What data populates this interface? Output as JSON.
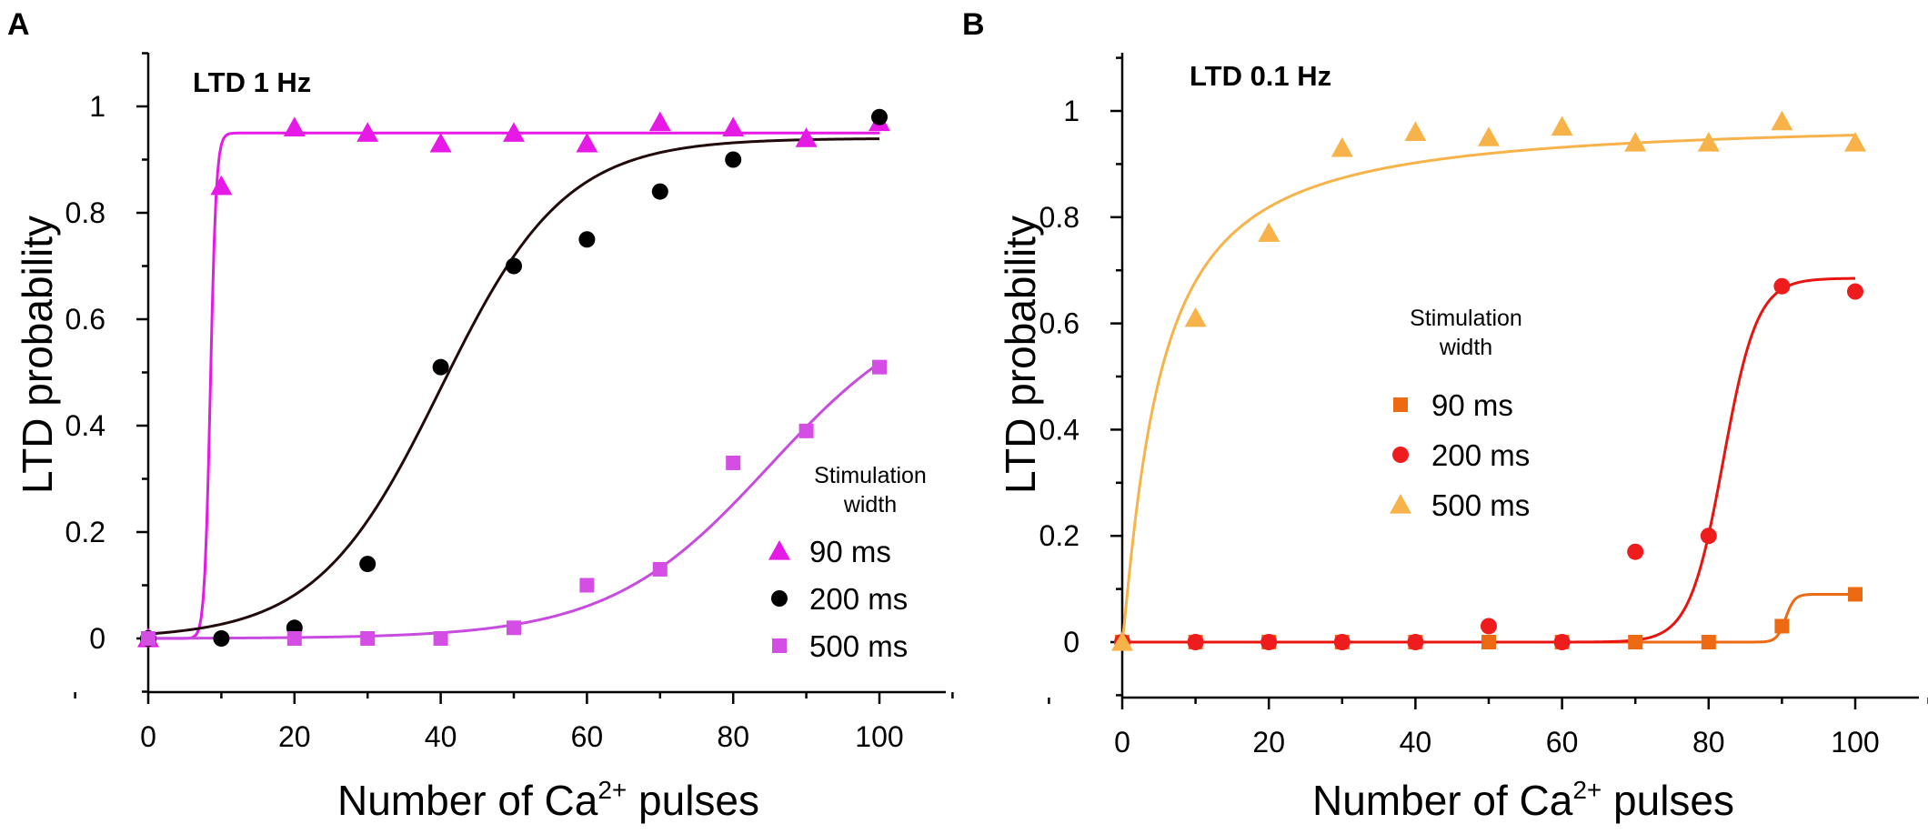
{
  "chart_data": [
    {
      "panel": "A",
      "type": "scatter",
      "title": "LTD 1 Hz",
      "xlabel": "Number of Ca",
      "xlabel_sup": "2+",
      "xlabel_suffix": " pulses",
      "ylabel": "LTD probability",
      "xlim": [
        -10,
        110
      ],
      "ylim": [
        -0.1,
        1.1
      ],
      "xticks": [
        0,
        20,
        40,
        60,
        80,
        100
      ],
      "xtick_labels": [
        "0",
        "20",
        "40",
        "60",
        "80",
        "100"
      ],
      "yticks": [
        0,
        0.2,
        0.4,
        0.6,
        0.8,
        1
      ],
      "ytick_labels": [
        "0",
        "0.2",
        "0.4",
        "0.6",
        "0.8",
        "1"
      ],
      "legend_title": [
        "Stimulation",
        "width"
      ],
      "legend_position": "bottom-right",
      "series": [
        {
          "name": "90 ms",
          "marker": "triangle",
          "color": "#e619e6",
          "x": [
            0,
            10,
            20,
            30,
            40,
            50,
            60,
            70,
            80,
            90,
            100
          ],
          "y": [
            0,
            0.85,
            0.96,
            0.95,
            0.93,
            0.95,
            0.93,
            0.97,
            0.96,
            0.94,
            0.97
          ],
          "fit": {
            "type": "sigmoid",
            "A": 0.95,
            "x0": 8.5,
            "k": 0.4
          }
        },
        {
          "name": "200 ms",
          "marker": "circle",
          "color": "#000000",
          "x": [
            0,
            10,
            20,
            30,
            40,
            50,
            60,
            70,
            80,
            100
          ],
          "y": [
            0,
            0,
            0.02,
            0.14,
            0.51,
            0.7,
            0.75,
            0.84,
            0.9,
            0.98
          ],
          "fit": {
            "type": "sigmoid",
            "A": 0.94,
            "x0": 40,
            "k": 8.5,
            "color": "#200a0a"
          }
        },
        {
          "name": "500 ms",
          "marker": "square",
          "color": "#d44ee6",
          "x": [
            0,
            20,
            30,
            40,
            50,
            60,
            70,
            80,
            90,
            100
          ],
          "y": [
            0,
            0,
            0,
            0,
            0.02,
            0.1,
            0.13,
            0.33,
            0.39,
            0.51
          ],
          "fit": {
            "type": "sigmoid",
            "A": 0.65,
            "x0": 85,
            "k": 11,
            "color": "#c84bdf"
          }
        }
      ]
    },
    {
      "panel": "B",
      "type": "scatter",
      "title": "LTD 0.1 Hz",
      "xlabel": "Number of Ca",
      "xlabel_sup": "2+",
      "xlabel_suffix": " pulses",
      "ylabel": "LTD probability",
      "xlim": [
        -10,
        110
      ],
      "ylim": [
        -0.1,
        1.1
      ],
      "xticks": [
        0,
        20,
        40,
        60,
        80,
        100
      ],
      "xtick_labels": [
        "0",
        "20",
        "40",
        "60",
        "80",
        "100"
      ],
      "yticks": [
        0,
        0.2,
        0.4,
        0.6,
        0.8,
        1
      ],
      "ytick_labels": [
        "0",
        "0.2",
        "0.4",
        "0.6",
        "0.8",
        "1"
      ],
      "legend_title": [
        "Stimulation",
        "width"
      ],
      "legend_position": "center",
      "series": [
        {
          "name": "90 ms",
          "marker": "square",
          "color": "#ee6a12",
          "x": [
            0,
            10,
            20,
            30,
            40,
            50,
            60,
            70,
            80,
            90,
            100
          ],
          "y": [
            0,
            0,
            0,
            0,
            0,
            0,
            0,
            0,
            0,
            0.03,
            0.09
          ],
          "fit": {
            "type": "sigmoid",
            "A": 0.09,
            "x0": 90.5,
            "k": 0.6
          }
        },
        {
          "name": "200 ms",
          "marker": "circle",
          "color": "#ee1c1c",
          "x": [
            0,
            10,
            20,
            30,
            40,
            50,
            60,
            70,
            80,
            90,
            100
          ],
          "y": [
            0,
            0,
            0,
            0,
            0,
            0.03,
            0,
            0.17,
            0.2,
            0.67,
            0.66
          ],
          "fit": {
            "type": "sigmoid",
            "A": 0.685,
            "x0": 82,
            "k": 2.3,
            "color": "#e8140f"
          }
        },
        {
          "name": "500 ms",
          "marker": "triangle",
          "color": "#f7b349",
          "x": [
            0,
            10,
            20,
            30,
            40,
            50,
            60,
            70,
            80,
            90,
            100
          ],
          "y": [
            0,
            0.61,
            0.77,
            0.93,
            0.96,
            0.95,
            0.97,
            0.94,
            0.94,
            0.98,
            0.94
          ],
          "fit": {
            "type": "hill",
            "A": 0.985,
            "K": 5,
            "n": 1.15,
            "color": "#f7b349"
          }
        }
      ]
    }
  ]
}
